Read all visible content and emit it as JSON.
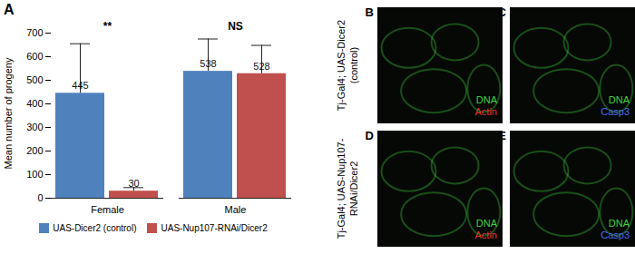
{
  "chart_data": {
    "type": "bar",
    "panel_label": "A",
    "y_label": "Mean number of progeny",
    "categories": [
      "Female",
      "Male"
    ],
    "series": [
      {
        "name": "UAS-Dicer2 (control)",
        "color": "#4f81bd",
        "values": [
          445,
          538
        ],
        "errors": [
          210,
          137
        ]
      },
      {
        "name": "UAS-Nup107-RNAi/Dicer2",
        "color": "#c0504d",
        "values": [
          30,
          528
        ],
        "errors": [
          15,
          120
        ]
      }
    ],
    "annotations": [
      {
        "category": "Female",
        "text": "**"
      },
      {
        "category": "Male",
        "text": "NS"
      }
    ],
    "ylim": [
      0,
      700
    ],
    "yticks": [
      0,
      100,
      200,
      300,
      400,
      500,
      600,
      700
    ],
    "data_labels": true,
    "legend": "bottom",
    "grid": false
  },
  "panels": [
    {
      "letter": "B",
      "stains": [
        {
          "text": "DNA",
          "color": "#3fd43f"
        },
        {
          "text": "Actin",
          "color": "#e8322a"
        }
      ]
    },
    {
      "letter": "C",
      "stains": [
        {
          "text": "DNA",
          "color": "#3fd43f"
        },
        {
          "text": "Casp3",
          "color": "#4a6cf0"
        }
      ]
    },
    {
      "letter": "D",
      "stains": [
        {
          "text": "DNA",
          "color": "#3fd43f"
        },
        {
          "text": "Actin",
          "color": "#e8322a"
        }
      ]
    },
    {
      "letter": "E",
      "stains": [
        {
          "text": "DNA",
          "color": "#3fd43f"
        },
        {
          "text": "Casp3",
          "color": "#4a6cf0"
        }
      ]
    }
  ],
  "row_labels": [
    [
      "Tj-Gal4; UAS-Dicer2",
      "(control)"
    ],
    [
      "Tj-Gal4; UAS-Nup107-",
      "RNAi/Dicer2"
    ]
  ]
}
